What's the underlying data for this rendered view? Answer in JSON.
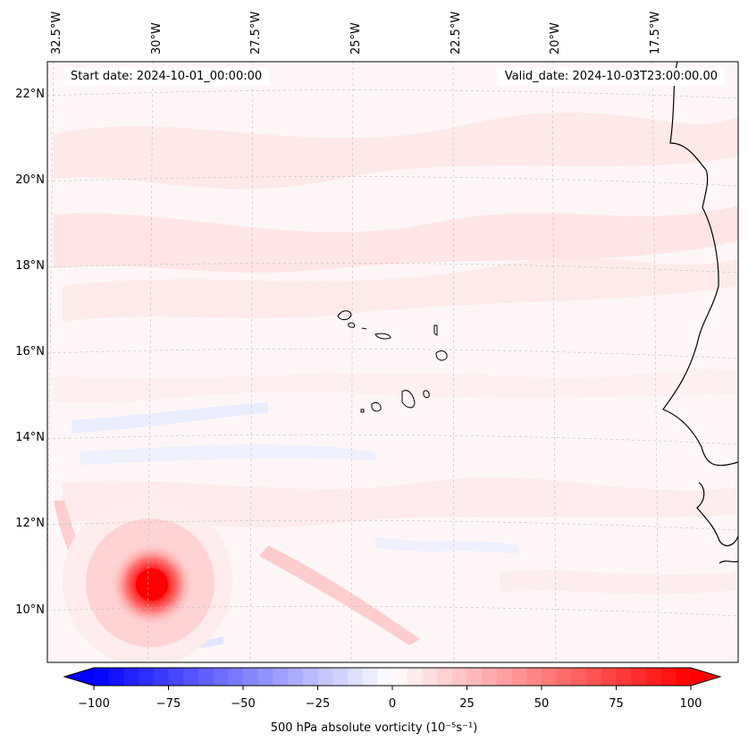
{
  "map": {
    "header": {
      "start_date": "Start date: 2024-10-01_00:00:00",
      "valid_date": "Valid_date: 2024-10-03T23:00:00.00"
    },
    "longitude_labels": [
      "32.5°W",
      "30°W",
      "27.5°W",
      "25°W",
      "22.5°W",
      "20°W",
      "17.5°W"
    ],
    "latitude_labels": [
      "22°N",
      "20°N",
      "18°N",
      "16°N",
      "14°N",
      "12°N",
      "10°N"
    ],
    "colorbar": {
      "ticks": [
        "−100",
        "−75",
        "−50",
        "−25",
        "0",
        "25",
        "50",
        "75",
        "100"
      ],
      "label": "500 hPa absolute vorticity (10⁻⁵s⁻¹)",
      "min": -100,
      "max": 100,
      "low_color": "#0000ff",
      "mid_color": "#ffffff",
      "high_color": "#ff0000"
    }
  }
}
